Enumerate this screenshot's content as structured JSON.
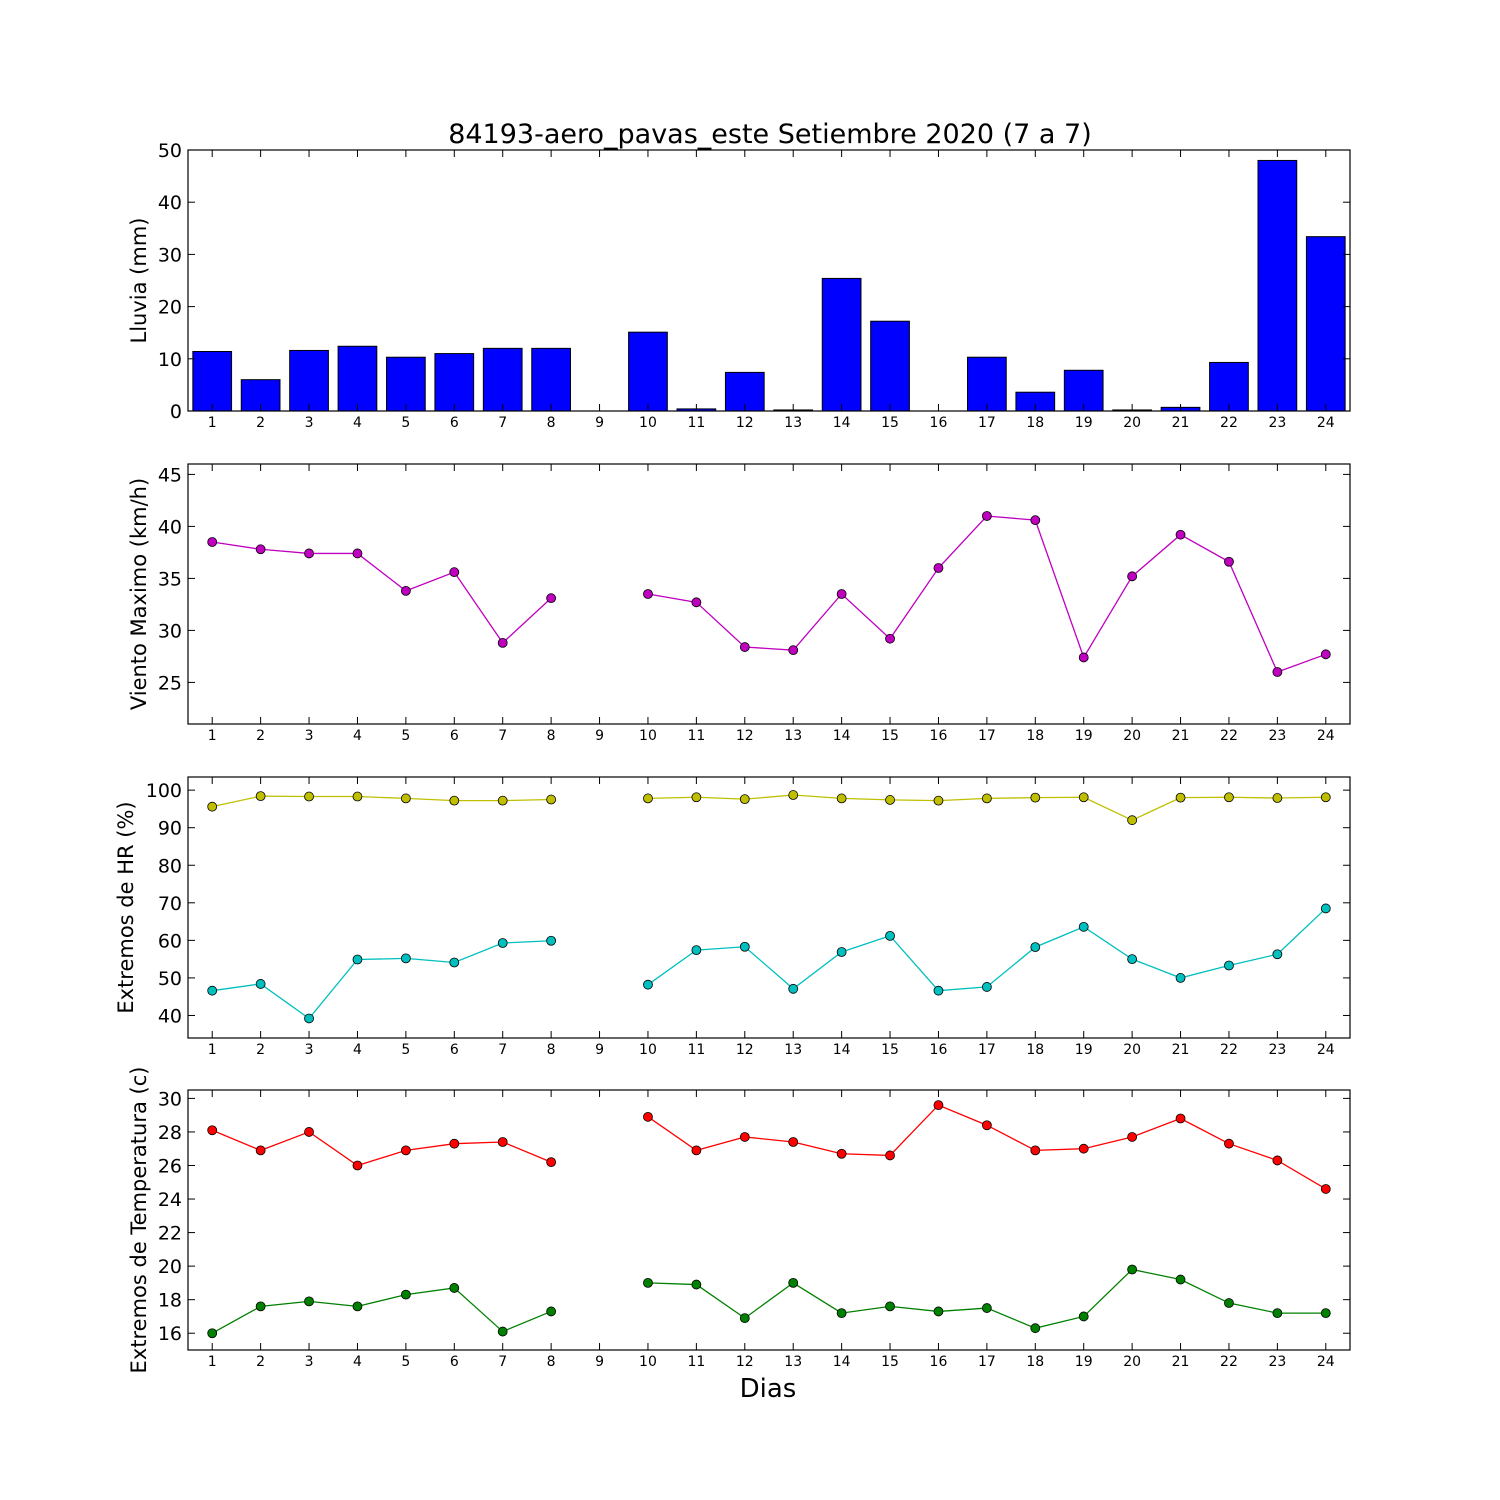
{
  "figure": {
    "title": "84193-aero_pavas_este Setiembre 2020  (7 a 7)",
    "xlabel": "Dias"
  },
  "chart_data": [
    {
      "type": "bar",
      "ylabel": "Lluvia (mm)",
      "categories": [
        1,
        2,
        3,
        4,
        5,
        6,
        7,
        8,
        9,
        10,
        11,
        12,
        13,
        14,
        15,
        16,
        17,
        18,
        19,
        20,
        21,
        22,
        23,
        24
      ],
      "xlim": [
        0.5,
        24.5
      ],
      "ylim": [
        0,
        50
      ],
      "yticks": [
        0,
        10,
        20,
        30,
        40,
        50
      ],
      "grid": false,
      "series": [
        {
          "color": "#0000ff",
          "values": [
            11.4,
            6.0,
            11.6,
            12.4,
            10.3,
            11.0,
            12.0,
            12.0,
            null,
            15.1,
            0.4,
            7.4,
            0.2,
            25.4,
            17.2,
            0.0,
            10.3,
            3.6,
            7.8,
            0.2,
            0.7,
            9.3,
            48.0,
            33.4
          ]
        }
      ]
    },
    {
      "type": "line",
      "ylabel": "Viento Maximo (km/h)",
      "x": [
        1,
        2,
        3,
        4,
        5,
        6,
        7,
        8,
        9,
        10,
        11,
        12,
        13,
        14,
        15,
        16,
        17,
        18,
        19,
        20,
        21,
        22,
        23,
        24
      ],
      "xlim": [
        0.5,
        24.5
      ],
      "ylim": [
        21,
        46
      ],
      "yticks": [
        25,
        30,
        35,
        40,
        45
      ],
      "grid": false,
      "series": [
        {
          "color": "#bf00bf",
          "values": [
            38.5,
            37.8,
            37.4,
            37.4,
            33.8,
            35.6,
            28.8,
            33.1,
            null,
            33.5,
            32.7,
            28.4,
            28.1,
            33.5,
            29.2,
            36.0,
            41.0,
            40.6,
            27.4,
            35.2,
            39.2,
            36.6,
            26.0,
            27.7
          ]
        }
      ]
    },
    {
      "type": "line",
      "ylabel": "Extremos de HR (%)",
      "x": [
        1,
        2,
        3,
        4,
        5,
        6,
        7,
        8,
        9,
        10,
        11,
        12,
        13,
        14,
        15,
        16,
        17,
        18,
        19,
        20,
        21,
        22,
        23,
        24
      ],
      "xlim": [
        0.5,
        24.5
      ],
      "ylim": [
        34,
        103.5
      ],
      "yticks": [
        40,
        50,
        60,
        70,
        80,
        90,
        100
      ],
      "grid": false,
      "series": [
        {
          "color": "#bfbf00",
          "values": [
            95.6,
            98.4,
            98.3,
            98.3,
            97.8,
            97.2,
            97.2,
            97.5,
            null,
            97.8,
            98.1,
            97.6,
            98.7,
            97.8,
            97.4,
            97.2,
            97.8,
            98.0,
            98.1,
            92.0,
            98.0,
            98.1,
            97.9,
            98.1
          ]
        },
        {
          "color": "#00bfbf",
          "values": [
            46.6,
            48.4,
            39.2,
            54.9,
            55.2,
            54.1,
            59.3,
            59.9,
            null,
            48.2,
            57.4,
            58.3,
            47.1,
            56.9,
            61.2,
            46.6,
            47.6,
            58.2,
            63.6,
            55.0,
            50.0,
            53.3,
            56.3,
            68.5
          ]
        }
      ]
    },
    {
      "type": "line",
      "ylabel": "Extremos de Temperatura (c)",
      "x": [
        1,
        2,
        3,
        4,
        5,
        6,
        7,
        8,
        9,
        10,
        11,
        12,
        13,
        14,
        15,
        16,
        17,
        18,
        19,
        20,
        21,
        22,
        23,
        24
      ],
      "xlim": [
        0.5,
        24.5
      ],
      "ylim": [
        15,
        30.5
      ],
      "yticks": [
        16,
        18,
        20,
        22,
        24,
        26,
        28,
        30
      ],
      "grid": false,
      "series": [
        {
          "color": "#ff0000",
          "values": [
            28.1,
            26.9,
            28.0,
            26.0,
            26.9,
            27.3,
            27.4,
            26.2,
            null,
            28.9,
            26.9,
            27.7,
            27.4,
            26.7,
            26.6,
            29.6,
            28.4,
            26.9,
            27.0,
            27.7,
            28.8,
            27.3,
            26.3,
            24.6
          ]
        },
        {
          "color": "#008000",
          "values": [
            16.0,
            17.6,
            17.9,
            17.6,
            18.3,
            18.7,
            16.1,
            17.3,
            null,
            19.0,
            18.9,
            16.9,
            19.0,
            17.2,
            17.6,
            17.3,
            17.5,
            16.3,
            17.0,
            19.8,
            19.2,
            17.8,
            17.2,
            17.2
          ]
        }
      ]
    }
  ]
}
